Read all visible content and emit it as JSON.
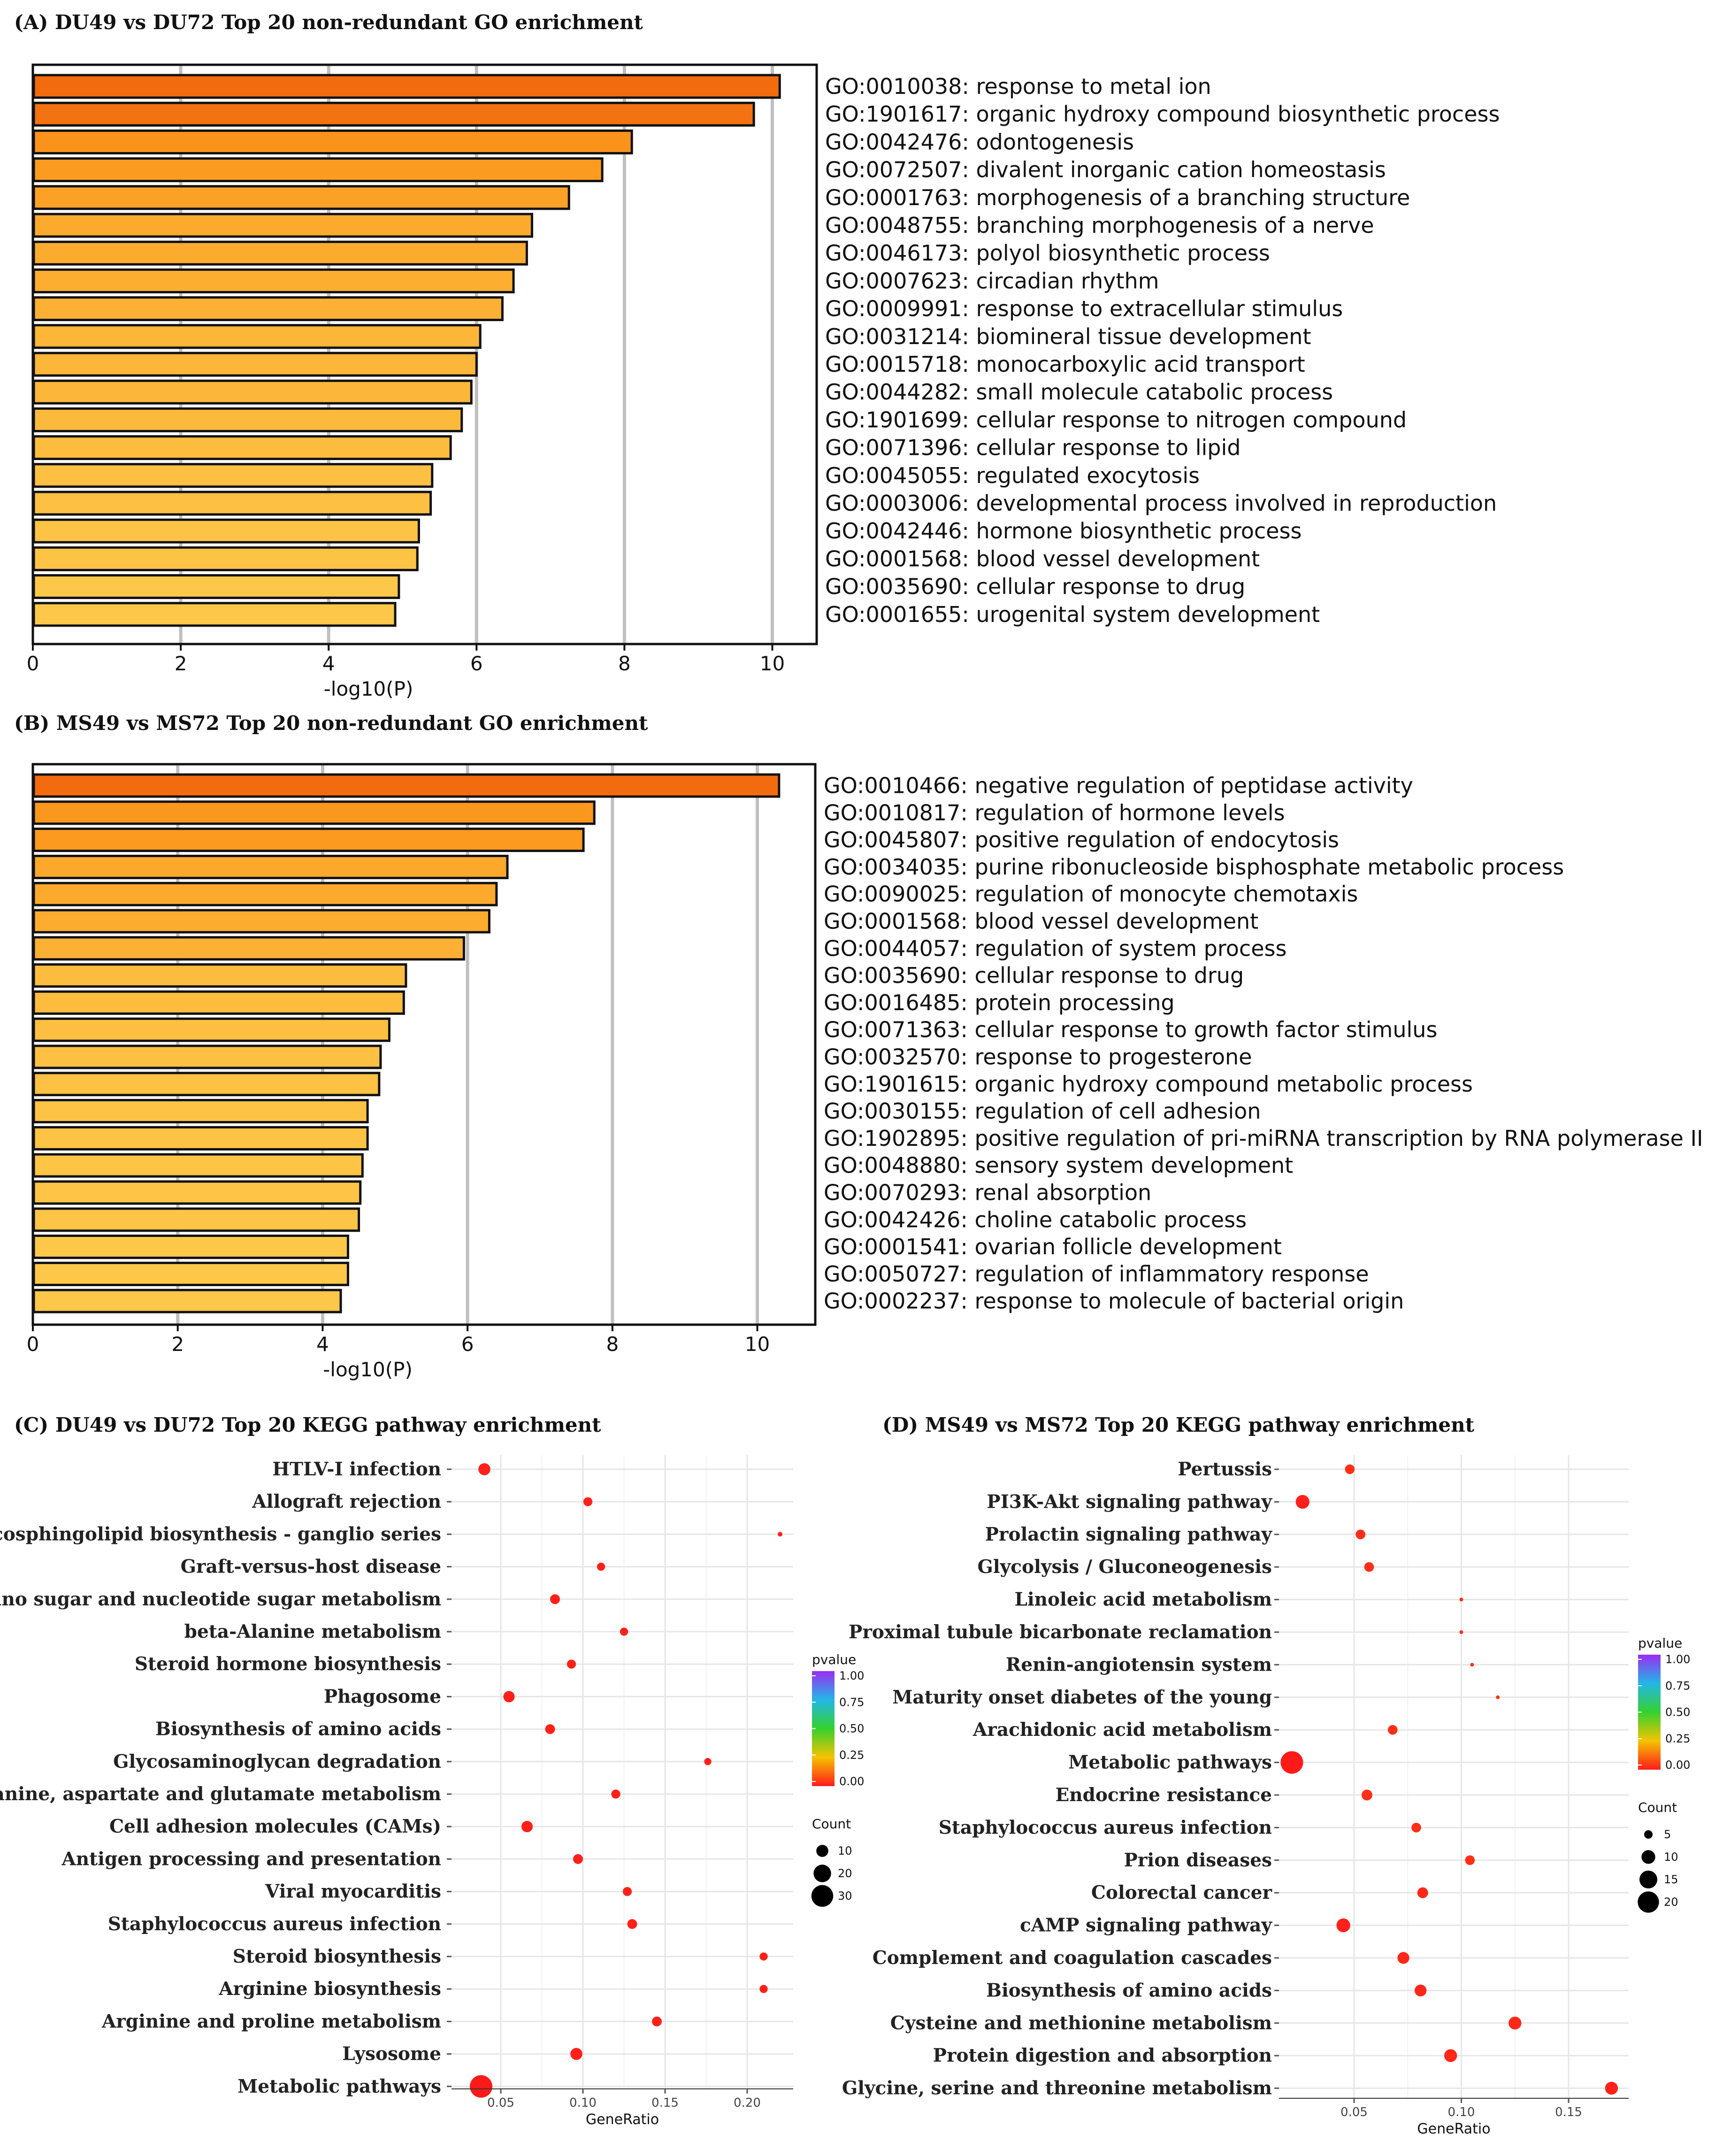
{
  "chart_data": [
    {
      "type": "bar",
      "orientation": "horizontal",
      "title": "(A) DU49 vs DU72  Top 20 non-redundant GO enrichment",
      "xlabel": "-log10(P)",
      "xlim": [
        0,
        10.6
      ],
      "xticks": [
        "0",
        "2",
        "4",
        "6",
        "8",
        "10"
      ],
      "categories": [
        "GO:0010038: response to metal ion",
        "GO:1901617: organic hydroxy compound biosynthetic process",
        "GO:0042476: odontogenesis",
        "GO:0072507: divalent inorganic cation homeostasis",
        "GO:0001763: morphogenesis of a branching structure",
        "GO:0048755: branching morphogenesis of a nerve",
        "GO:0046173: polyol biosynthetic process",
        "GO:0007623: circadian rhythm",
        "GO:0009991: response to extracellular stimulus",
        "GO:0031214: biomineral tissue development",
        "GO:0015718: monocarboxylic acid transport",
        "GO:0044282: small molecule catabolic process",
        "GO:1901699: cellular response to nitrogen compound",
        "GO:0071396: cellular response to lipid",
        "GO:0045055: regulated exocytosis",
        "GO:0003006: developmental process involved in reproduction",
        "GO:0042446: hormone biosynthetic process",
        "GO:0001568: blood vessel development",
        "GO:0035690: cellular response to drug",
        "GO:0001655: urogenital system development"
      ],
      "values": [
        10.1,
        9.75,
        8.1,
        7.7,
        7.25,
        6.75,
        6.68,
        6.5,
        6.35,
        6.05,
        6.0,
        5.93,
        5.8,
        5.65,
        5.4,
        5.38,
        5.22,
        5.2,
        4.95,
        4.9
      ]
    },
    {
      "type": "bar",
      "orientation": "horizontal",
      "title": "(B) MS49 vs MS72  Top 20 non-redundant GO enrichment",
      "xlabel": "-log10(P)",
      "xlim": [
        0,
        10.8
      ],
      "xticks": [
        "0",
        "2",
        "4",
        "6",
        "8",
        "10"
      ],
      "categories": [
        "GO:0010466: negative regulation of peptidase activity",
        "GO:0010817: regulation of hormone levels",
        "GO:0045807: positive regulation of endocytosis",
        "GO:0034035: purine ribonucleoside bisphosphate metabolic process",
        "GO:0090025: regulation of monocyte chemotaxis",
        "GO:0001568: blood vessel development",
        "GO:0044057: regulation of system process",
        "GO:0035690: cellular response to drug",
        "GO:0016485: protein processing",
        "GO:0071363: cellular response to growth factor stimulus",
        "GO:0032570: response to progesterone",
        "GO:1901615: organic hydroxy compound metabolic process",
        "GO:0030155: regulation of cell adhesion",
        "GO:1902895: positive regulation of pri-miRNA transcription by RNA polymerase II",
        "GO:0048880: sensory system development",
        "GO:0070293: renal absorption",
        "GO:0042426: choline catabolic process",
        "GO:0001541: ovarian follicle development",
        "GO:0050727: regulation of inflammatory response",
        "GO:0002237: response to molecule of bacterial origin"
      ],
      "values": [
        10.3,
        7.75,
        7.6,
        6.55,
        6.4,
        6.3,
        5.95,
        5.15,
        5.12,
        4.92,
        4.8,
        4.78,
        4.62,
        4.62,
        4.55,
        4.52,
        4.5,
        4.35,
        4.35,
        4.25
      ]
    },
    {
      "type": "scatter",
      "title": "(C) DU49 vs DU72  Top 20 KEGG pathway enrichment",
      "xlabel": "GeneRatio",
      "xlim": [
        0.02,
        0.228
      ],
      "xticks": [
        0.05,
        0.1,
        0.15,
        0.2
      ],
      "xtick_labels": [
        "0.05",
        "0.10",
        "0.15",
        "0.20"
      ],
      "categories": [
        "HTLV-I infection",
        "Allograft rejection",
        "Glycosphingolipid biosynthesis - ganglio series",
        "Graft-versus-host disease",
        "Amino sugar and nucleotide sugar metabolism",
        "beta-Alanine metabolism",
        "Steroid hormone biosynthesis",
        "Phagosome",
        "Biosynthesis of amino acids",
        "Glycosaminoglycan degradation",
        "Alanine, aspartate and glutamate metabolism",
        "Cell adhesion molecules (CAMs)",
        "Antigen processing and presentation",
        "Viral myocarditis",
        "Staphylococcus aureus infection",
        "Steroid biosynthesis",
        "Arginine biosynthesis",
        "Arginine and proline metabolism",
        "Lysosome",
        "Metabolic pathways"
      ],
      "gene_ratio": [
        0.04,
        0.103,
        0.22,
        0.111,
        0.083,
        0.125,
        0.093,
        0.055,
        0.08,
        0.176,
        0.12,
        0.066,
        0.097,
        0.127,
        0.13,
        0.21,
        0.21,
        0.145,
        0.096,
        0.038
      ],
      "count": [
        10,
        6,
        2,
        5,
        7,
        5,
        6,
        9,
        7,
        4,
        6,
        9,
        7,
        6,
        7,
        5,
        5,
        7,
        10,
        32
      ],
      "pvalue": [
        0.01,
        0.01,
        0.01,
        0.01,
        0.01,
        0.01,
        0.01,
        0.01,
        0.01,
        0.01,
        0.01,
        0.01,
        0.01,
        0.01,
        0.01,
        0.01,
        0.01,
        0.01,
        0.01,
        0.0
      ],
      "legend": {
        "color_title": "pvalue",
        "color_ticks": [
          "1.00",
          "0.75",
          "0.50",
          "0.25",
          "0.00"
        ],
        "size_title": "Count",
        "size_values": [
          10,
          20,
          30
        ],
        "size_labels": [
          "10",
          "20",
          "30"
        ]
      }
    },
    {
      "type": "scatter",
      "title": "(D) MS49 vs MS72  Top 20 KEGG pathway enrichment",
      "xlabel": "GeneRatio",
      "xlim": [
        0.015,
        0.178
      ],
      "xticks": [
        0.05,
        0.1,
        0.15
      ],
      "xtick_labels": [
        "0.05",
        "0.10",
        "0.15"
      ],
      "categories": [
        "Pertussis",
        "PI3K-Akt signaling pathway",
        "Prolactin signaling pathway",
        "Glycolysis / Gluconeogenesis",
        "Linoleic acid metabolism",
        "Proximal tubule bicarbonate reclamation",
        "Renin-angiotensin system",
        "Maturity onset diabetes of the young",
        "Arachidonic acid metabolism",
        "Metabolic pathways",
        "Endocrine resistance",
        "Staphylococcus aureus infection",
        "Prion diseases",
        "Colorectal cancer",
        "cAMP signaling pathway",
        "Complement and coagulation cascades",
        "Biosynthesis of amino acids",
        "Cysteine and methionine metabolism",
        "Protein digestion and absorption",
        "Glycine, serine and threonine metabolism"
      ],
      "gene_ratio": [
        0.048,
        0.026,
        0.053,
        0.057,
        0.1,
        0.1,
        0.105,
        0.117,
        0.068,
        0.021,
        0.056,
        0.079,
        0.104,
        0.082,
        0.045,
        0.073,
        0.081,
        0.125,
        0.095,
        0.17
      ],
      "count": [
        6,
        10,
        6,
        6,
        2,
        2,
        2,
        2,
        6,
        22,
        7,
        6,
        6,
        7,
        10,
        8,
        8,
        9,
        9,
        9
      ],
      "pvalue": [
        0.03,
        0.01,
        0.03,
        0.03,
        0.03,
        0.03,
        0.03,
        0.03,
        0.03,
        0.0,
        0.03,
        0.03,
        0.03,
        0.02,
        0.01,
        0.02,
        0.02,
        0.02,
        0.02,
        0.01
      ],
      "legend": {
        "color_title": "pvalue",
        "color_ticks": [
          "1.00",
          "0.75",
          "0.50",
          "0.25",
          "0.00"
        ],
        "size_title": "Count",
        "size_values": [
          5,
          10,
          15,
          20
        ],
        "size_labels": [
          "5",
          "10",
          "15",
          "20"
        ]
      }
    }
  ]
}
